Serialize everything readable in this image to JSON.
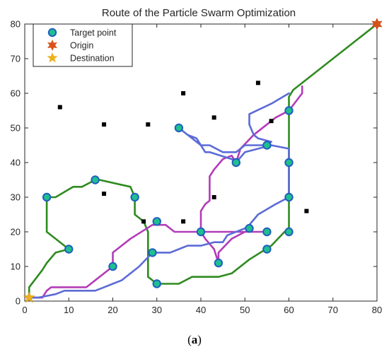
{
  "caption": {
    "open": "(",
    "label": "a",
    "close": ")"
  },
  "chart_data": {
    "type": "line",
    "title": "Route of the Particle Swarm Optimization",
    "xlabel": "",
    "ylabel": "",
    "xlim": [
      0,
      80
    ],
    "ylim": [
      0,
      80
    ],
    "xticks": [
      0,
      10,
      20,
      30,
      40,
      50,
      60,
      70,
      80
    ],
    "yticks": [
      0,
      10,
      20,
      30,
      40,
      50,
      60,
      70,
      80
    ],
    "grid": false,
    "legend_position": "top-left",
    "legend": [
      {
        "label": "Target point",
        "marker": "circle",
        "fill": "#1fbf8f",
        "edge": "#1f5fbf"
      },
      {
        "label": "Origin",
        "marker": "hexagram",
        "color": "#d95319"
      },
      {
        "label": "Destination",
        "marker": "pentagram",
        "color": "#edb120"
      }
    ],
    "origin": {
      "x": 80,
      "y": 80
    },
    "destination": {
      "x": 1,
      "y": 1
    },
    "target_points": [
      {
        "x": 5,
        "y": 30
      },
      {
        "x": 10,
        "y": 15
      },
      {
        "x": 16,
        "y": 35
      },
      {
        "x": 20,
        "y": 10
      },
      {
        "x": 25,
        "y": 30
      },
      {
        "x": 29,
        "y": 14
      },
      {
        "x": 30,
        "y": 23
      },
      {
        "x": 30,
        "y": 5
      },
      {
        "x": 35,
        "y": 50
      },
      {
        "x": 40,
        "y": 20
      },
      {
        "x": 44,
        "y": 11
      },
      {
        "x": 48,
        "y": 40
      },
      {
        "x": 51,
        "y": 21
      },
      {
        "x": 55,
        "y": 45
      },
      {
        "x": 55,
        "y": 20
      },
      {
        "x": 55,
        "y": 15
      },
      {
        "x": 60,
        "y": 55
      },
      {
        "x": 60,
        "y": 40
      },
      {
        "x": 60,
        "y": 30
      },
      {
        "x": 60,
        "y": 20
      }
    ],
    "obstacles": [
      {
        "x": 8,
        "y": 56
      },
      {
        "x": 18,
        "y": 51
      },
      {
        "x": 28,
        "y": 51
      },
      {
        "x": 36,
        "y": 60
      },
      {
        "x": 43,
        "y": 53
      },
      {
        "x": 53,
        "y": 63
      },
      {
        "x": 56,
        "y": 52
      },
      {
        "x": 18,
        "y": 31
      },
      {
        "x": 27,
        "y": 23
      },
      {
        "x": 36,
        "y": 23
      },
      {
        "x": 43,
        "y": 30
      },
      {
        "x": 64,
        "y": 26
      }
    ],
    "series": [
      {
        "color": "#2e8b1f",
        "points": [
          [
            80,
            80
          ],
          [
            61,
            61
          ],
          [
            60,
            59
          ],
          [
            60,
            21
          ],
          [
            59,
            20
          ],
          [
            56,
            16
          ],
          [
            51,
            12
          ],
          [
            47,
            8
          ],
          [
            44,
            7
          ],
          [
            38,
            7
          ],
          [
            35,
            5
          ],
          [
            30,
            5
          ],
          [
            28,
            7
          ],
          [
            28,
            20
          ],
          [
            27,
            23
          ],
          [
            26,
            24
          ],
          [
            25,
            25
          ],
          [
            25,
            30
          ],
          [
            24,
            33
          ],
          [
            17,
            35
          ],
          [
            16,
            35
          ],
          [
            13,
            33
          ],
          [
            11,
            33
          ],
          [
            7,
            30
          ],
          [
            5,
            30
          ],
          [
            5,
            20
          ],
          [
            10,
            15
          ],
          [
            7,
            14
          ],
          [
            5,
            11
          ],
          [
            4,
            9
          ],
          [
            1,
            4
          ],
          [
            1,
            1
          ]
        ]
      },
      {
        "color": "#b23cb8",
        "points": [
          [
            63,
            62
          ],
          [
            63,
            60
          ],
          [
            60,
            55
          ],
          [
            57,
            53
          ],
          [
            52,
            48
          ],
          [
            49,
            44
          ],
          [
            48,
            40
          ],
          [
            47,
            42
          ],
          [
            45,
            41
          ],
          [
            43,
            38
          ],
          [
            42,
            36
          ],
          [
            42,
            29
          ],
          [
            41,
            28
          ],
          [
            40,
            26
          ],
          [
            40,
            20
          ],
          [
            41,
            18
          ],
          [
            43,
            15
          ],
          [
            44,
            11
          ],
          [
            44,
            14
          ],
          [
            47,
            18
          ],
          [
            50,
            20
          ],
          [
            55,
            20
          ],
          [
            44,
            20
          ],
          [
            40,
            20
          ],
          [
            37,
            20
          ],
          [
            34,
            20
          ],
          [
            32,
            22
          ],
          [
            29,
            22
          ],
          [
            24,
            18
          ],
          [
            20,
            14
          ],
          [
            20,
            10
          ],
          [
            14,
            4
          ],
          [
            7,
            4
          ],
          [
            6,
            4
          ],
          [
            5,
            3
          ],
          [
            4,
            1
          ],
          [
            1,
            1
          ]
        ]
      },
      {
        "color": "#5c6bd6",
        "points": [
          [
            60,
            60
          ],
          [
            56,
            57
          ],
          [
            51,
            54
          ],
          [
            51,
            51
          ],
          [
            52,
            48
          ],
          [
            53,
            47
          ],
          [
            56,
            46
          ],
          [
            55,
            45
          ],
          [
            50,
            45
          ],
          [
            48,
            43
          ],
          [
            45,
            43
          ],
          [
            42,
            45
          ],
          [
            40,
            45
          ],
          [
            39,
            47
          ],
          [
            37,
            48
          ],
          [
            35,
            50
          ],
          [
            40,
            45
          ],
          [
            41,
            43
          ],
          [
            42,
            43
          ],
          [
            47,
            41
          ],
          [
            48,
            40
          ],
          [
            50,
            43
          ],
          [
            53,
            44
          ],
          [
            56,
            45
          ],
          [
            60,
            44
          ],
          [
            60,
            40
          ],
          [
            60,
            30
          ],
          [
            57,
            28
          ],
          [
            53,
            25
          ],
          [
            51,
            22
          ],
          [
            50,
            21
          ],
          [
            46,
            19
          ],
          [
            45,
            17
          ],
          [
            43,
            17
          ],
          [
            40,
            16
          ],
          [
            37,
            16
          ],
          [
            35,
            15
          ],
          [
            33,
            14
          ],
          [
            29,
            14
          ],
          [
            26,
            10
          ],
          [
            22,
            6
          ],
          [
            20,
            5
          ],
          [
            18,
            4
          ],
          [
            16,
            3
          ],
          [
            11,
            3
          ],
          [
            9,
            3
          ],
          [
            7,
            2
          ],
          [
            3,
            1
          ],
          [
            1,
            1
          ]
        ]
      }
    ]
  }
}
